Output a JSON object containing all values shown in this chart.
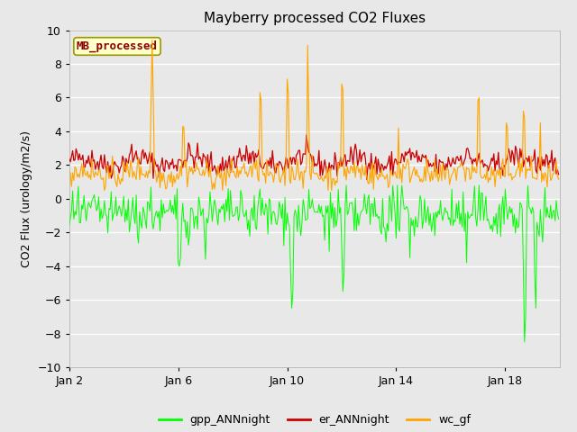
{
  "title": "Mayberry processed CO2 Fluxes",
  "ylabel": "CO2 Flux (urology/m2/s)",
  "ylim": [
    -10,
    10
  ],
  "yticks": [
    -10,
    -8,
    -6,
    -4,
    -2,
    0,
    2,
    4,
    6,
    8,
    10
  ],
  "xtick_labels": [
    "Jan 2",
    "Jan 6",
    "Jan 10",
    "Jan 14",
    "Jan 18"
  ],
  "fig_bg_color": "#e8e8e8",
  "plot_bg_color": "#e8e8e8",
  "grid_color": "#ffffff",
  "line_colors": {
    "gpp_ANNnight": "#00ff00",
    "er_ANNnight": "#cc0000",
    "wc_gf": "#ffa500"
  },
  "legend_label": "MB_processed",
  "legend_text_color": "#8b0000",
  "legend_bg": "#ffffcc",
  "legend_border": "#999900",
  "title_fontsize": 11,
  "axis_fontsize": 9,
  "ylabel_fontsize": 9,
  "n_points": 432,
  "seed": 42
}
